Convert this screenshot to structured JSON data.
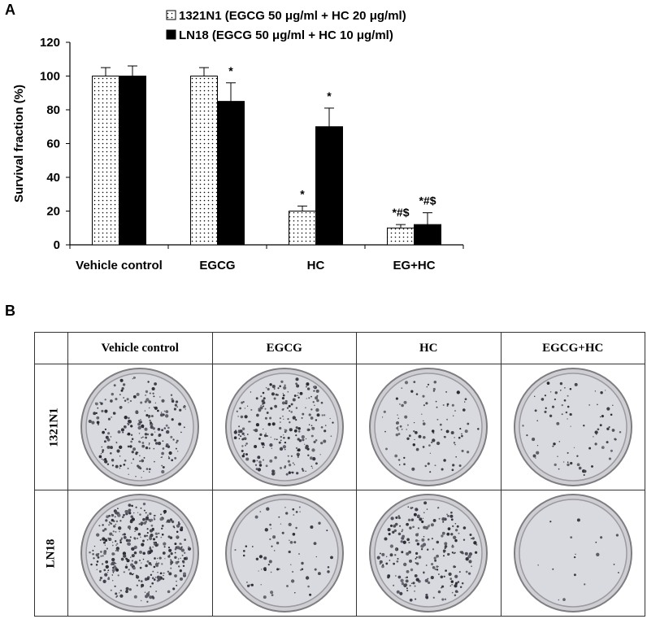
{
  "panel_a_label": "A",
  "panel_b_label": "B",
  "chart_data": {
    "type": "bar",
    "categories": [
      "Vehicle control",
      "EGCG",
      "HC",
      "EG+HC"
    ],
    "ylabel": "Survival fraction (%)",
    "xlabel": "",
    "ylim": [
      0,
      120
    ],
    "yticks": [
      0,
      20,
      40,
      60,
      80,
      100,
      120
    ],
    "grid": false,
    "legend_position": "top",
    "series": [
      {
        "name": "1321N1 (EGCG 50 μg/ml + HC 20 μg/ml)",
        "pattern": "dotted",
        "fill": "#ffffff",
        "values": [
          100,
          100,
          20,
          10
        ],
        "errors": [
          5,
          5,
          3,
          2
        ],
        "annotations": [
          "",
          "",
          "*",
          "*#$"
        ]
      },
      {
        "name": "LN18 (EGCG 50 μg/ml + HC 10 μg/ml)",
        "pattern": "solid",
        "fill": "#000000",
        "values": [
          100,
          85,
          70,
          12
        ],
        "errors": [
          6,
          11,
          11,
          7
        ],
        "annotations": [
          "",
          "*",
          "*",
          "*#$"
        ]
      }
    ]
  },
  "colony_table": {
    "columns": [
      "Vehicle control",
      "EGCG",
      "HC",
      "EGCG+HC"
    ],
    "rows": [
      {
        "label": "1321N1",
        "colony_density": [
          0.55,
          0.6,
          0.25,
          0.2
        ]
      },
      {
        "label": "LN18",
        "colony_density": [
          0.9,
          0.18,
          0.55,
          0.04
        ]
      }
    ]
  }
}
